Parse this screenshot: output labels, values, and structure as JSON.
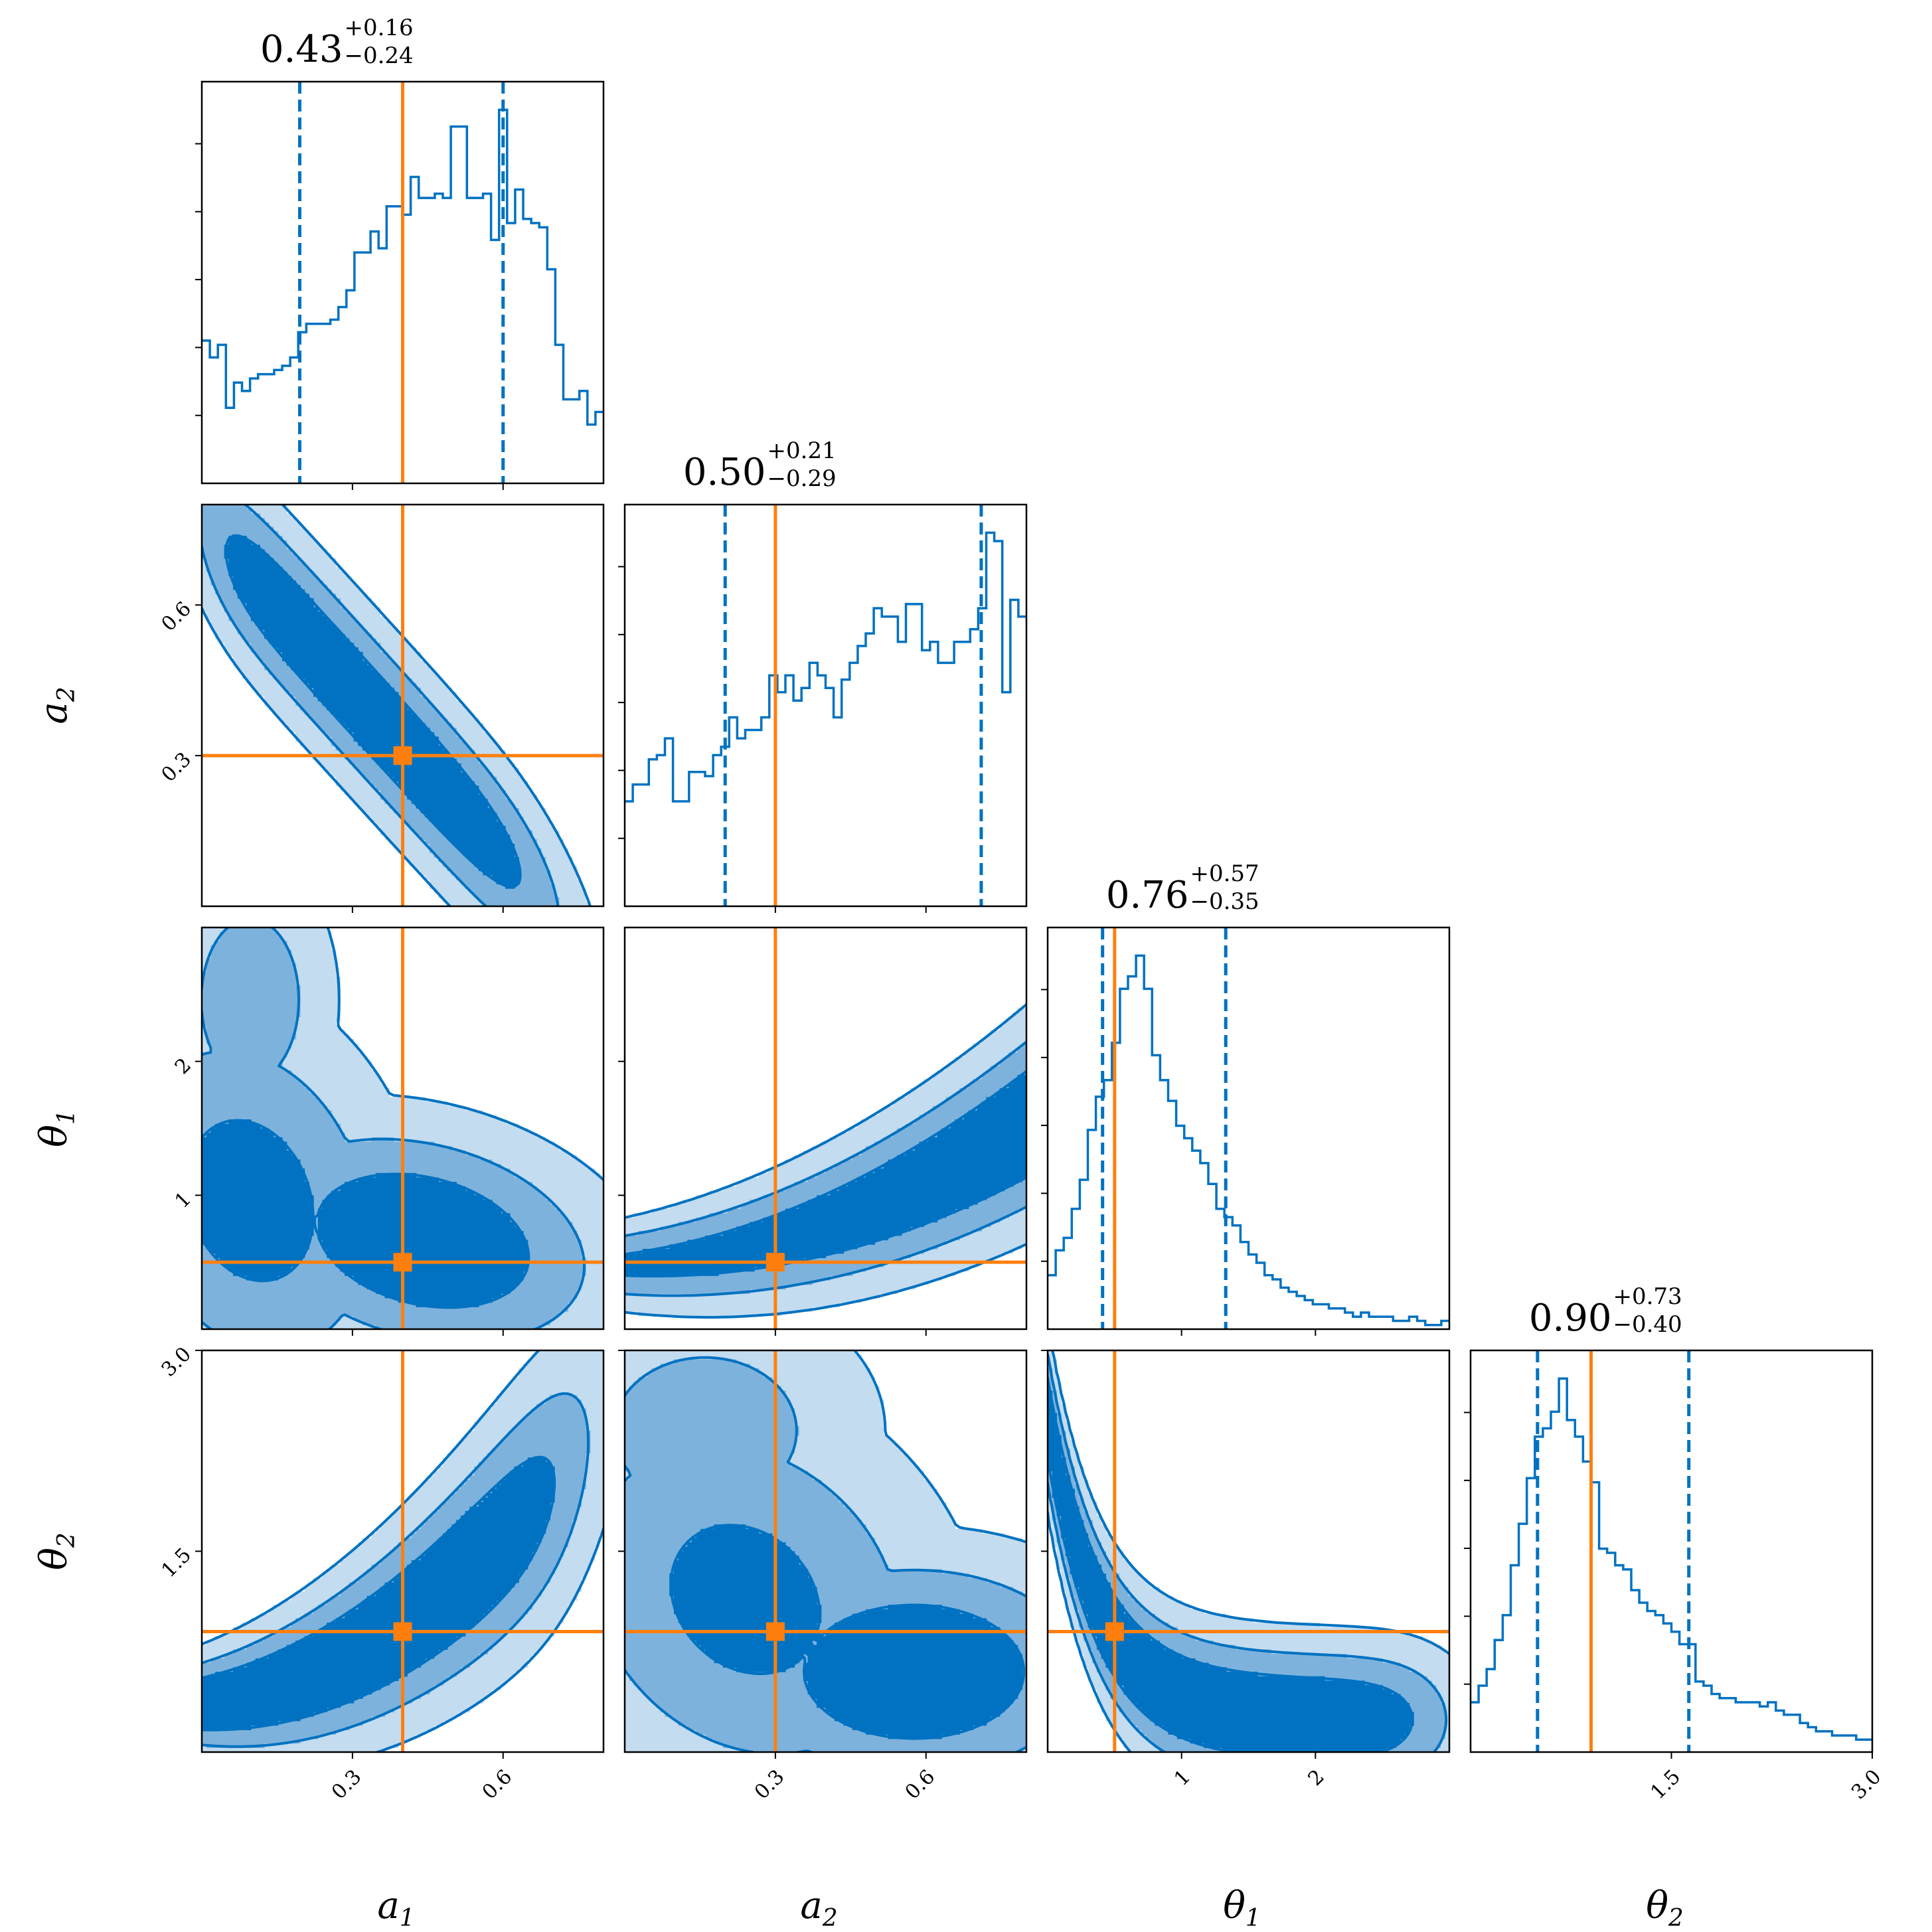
{
  "colors": {
    "posterior": "#0072c1",
    "level1": "#c3dcf0",
    "level2": "#7db2dd",
    "level3": "#0072c1",
    "truth": "#ff7f0e",
    "frame": "#000000"
  },
  "chart_data": {
    "type": "corner",
    "parameters": [
      {
        "key": "a1",
        "symbol": "a",
        "sub": "1",
        "range": [
          0.0,
          0.8
        ],
        "ticks": [
          0.3,
          0.6
        ],
        "tick_labels": [
          "0.3",
          "0.6"
        ],
        "truth": 0.4
      },
      {
        "key": "a2",
        "symbol": "a",
        "sub": "2",
        "range": [
          0.0,
          0.8
        ],
        "ticks": [
          0.3,
          0.6
        ],
        "tick_labels": [
          "0.3",
          "0.6"
        ],
        "truth": 0.3
      },
      {
        "key": "theta1",
        "symbol": "θ",
        "sub": "1",
        "range": [
          0.0,
          3.0
        ],
        "ticks": [
          1,
          2
        ],
        "tick_labels": [
          "1",
          "2"
        ],
        "truth": 0.5
      },
      {
        "key": "theta2",
        "symbol": "θ",
        "sub": "2",
        "range": [
          0.0,
          3.0
        ],
        "ticks": [
          1.5,
          3.0
        ],
        "tick_labels": [
          "1.5",
          "3.0"
        ],
        "truth": 0.9
      }
    ],
    "marginals": [
      {
        "param": "a1",
        "title": {
          "median": "0.43",
          "plus": "+0.16",
          "minus": "−0.24"
        },
        "quantiles": [
          0.195,
          0.6
        ],
        "bins": 50,
        "counts": [
          0.34,
          0.3,
          0.33,
          0.18,
          0.24,
          0.22,
          0.25,
          0.26,
          0.26,
          0.27,
          0.28,
          0.3,
          0.36,
          0.38,
          0.38,
          0.38,
          0.39,
          0.42,
          0.46,
          0.55,
          0.55,
          0.6,
          0.56,
          0.66,
          0.66,
          0.64,
          0.73,
          0.68,
          0.68,
          0.69,
          0.68,
          0.85,
          0.85,
          0.68,
          0.68,
          0.69,
          0.58,
          0.89,
          0.62,
          0.7,
          0.63,
          0.62,
          0.61,
          0.51,
          0.33,
          0.2,
          0.2,
          0.22,
          0.14,
          0.17
        ]
      },
      {
        "param": "a2",
        "title": {
          "median": "0.50",
          "plus": "+0.21",
          "minus": "−0.29"
        },
        "quantiles": [
          0.2,
          0.71
        ],
        "bins": 50,
        "counts": [
          0.25,
          0.29,
          0.29,
          0.35,
          0.36,
          0.4,
          0.25,
          0.25,
          0.32,
          0.32,
          0.31,
          0.36,
          0.38,
          0.45,
          0.4,
          0.42,
          0.42,
          0.45,
          0.55,
          0.51,
          0.55,
          0.49,
          0.52,
          0.58,
          0.55,
          0.52,
          0.45,
          0.54,
          0.58,
          0.62,
          0.65,
          0.71,
          0.69,
          0.69,
          0.63,
          0.72,
          0.72,
          0.61,
          0.63,
          0.58,
          0.58,
          0.63,
          0.63,
          0.66,
          0.71,
          0.89,
          0.87,
          0.51,
          0.73,
          0.69
        ]
      },
      {
        "param": "theta1",
        "title": {
          "median": "0.76",
          "plus": "+0.57",
          "minus": "−0.35"
        },
        "quantiles": [
          0.41,
          1.33
        ],
        "bins": 50,
        "counts": [
          0.13,
          0.19,
          0.22,
          0.29,
          0.36,
          0.48,
          0.56,
          0.6,
          0.69,
          0.82,
          0.85,
          0.9,
          0.82,
          0.66,
          0.6,
          0.55,
          0.49,
          0.46,
          0.43,
          0.4,
          0.35,
          0.29,
          0.27,
          0.25,
          0.21,
          0.18,
          0.16,
          0.13,
          0.12,
          0.1,
          0.09,
          0.08,
          0.07,
          0.06,
          0.06,
          0.05,
          0.05,
          0.04,
          0.03,
          0.04,
          0.03,
          0.03,
          0.03,
          0.02,
          0.02,
          0.03,
          0.02,
          0.01,
          0.01,
          0.02
        ]
      },
      {
        "param": "theta2",
        "title": {
          "median": "0.90",
          "plus": "+0.73",
          "minus": "−0.40"
        },
        "quantiles": [
          0.5,
          1.63
        ],
        "bins": 50,
        "counts": [
          0.12,
          0.16,
          0.2,
          0.27,
          0.33,
          0.45,
          0.55,
          0.66,
          0.76,
          0.78,
          0.82,
          0.9,
          0.8,
          0.76,
          0.7,
          0.65,
          0.49,
          0.48,
          0.45,
          0.44,
          0.39,
          0.36,
          0.34,
          0.33,
          0.31,
          0.29,
          0.26,
          0.26,
          0.17,
          0.16,
          0.14,
          0.13,
          0.13,
          0.12,
          0.12,
          0.12,
          0.11,
          0.12,
          0.1,
          0.09,
          0.09,
          0.07,
          0.06,
          0.05,
          0.05,
          0.04,
          0.04,
          0.04,
          0.03,
          0.03
        ]
      }
    ],
    "joint_levels": [
      "outer",
      "middle",
      "inner"
    ],
    "xlabels": [
      "a1",
      "a2",
      "θ1",
      "θ2"
    ],
    "ylabels": [
      "a2",
      "θ1",
      "θ2"
    ]
  }
}
